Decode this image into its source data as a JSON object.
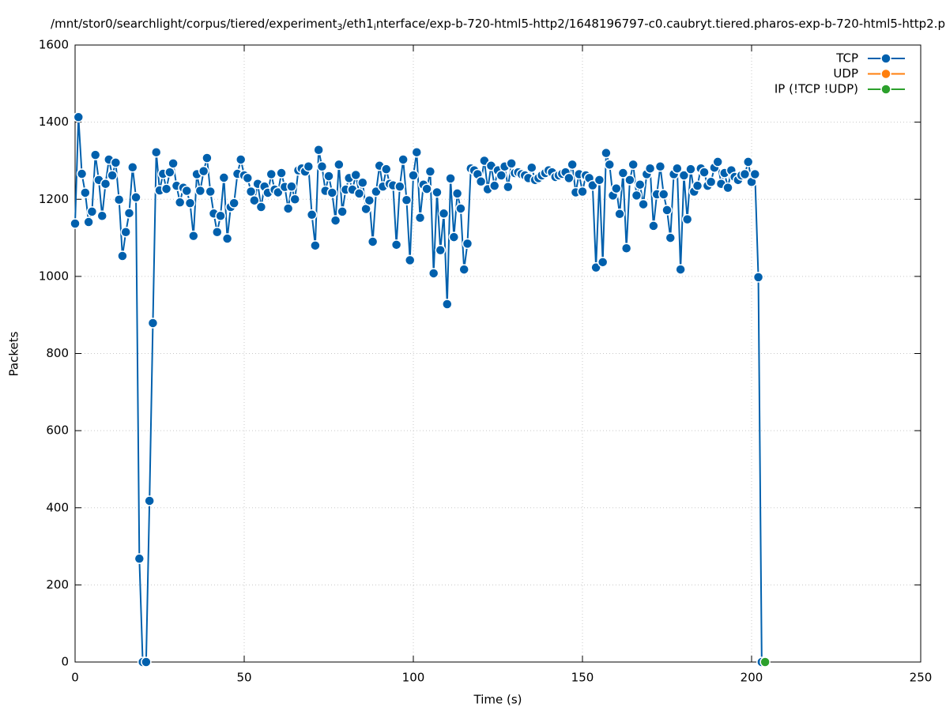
{
  "chart_data": {
    "type": "line",
    "title_parts": [
      "/mnt/stor0/searchlight/corpus/tiered/experiment",
      "3",
      "/eth1",
      "i",
      "nterface/exp-b-720-html5-http2/1648196797-c0.caubryt.tiered.pharos-exp-b-720-html5-http2.p"
    ],
    "x_label": "Time (s)",
    "y_label": "Packets",
    "xlim": [
      0,
      250
    ],
    "xticks": [
      0,
      50,
      100,
      150,
      200,
      250
    ],
    "ylim": [
      0,
      1600
    ],
    "yticks": [
      0,
      200,
      400,
      600,
      800,
      1000,
      1200,
      1400,
      1600
    ],
    "grid": true,
    "legend": "top-right",
    "series": [
      {
        "name": "TCP",
        "color": "#0060ad",
        "x": [
          0,
          1,
          2,
          3,
          4,
          5,
          6,
          7,
          8,
          9,
          10,
          11,
          12,
          13,
          14,
          15,
          16,
          17,
          18,
          19,
          20,
          21,
          22,
          23,
          24,
          25,
          26,
          27,
          28,
          29,
          30,
          31,
          32,
          33,
          34,
          35,
          36,
          37,
          38,
          39,
          40,
          41,
          42,
          43,
          44,
          45,
          46,
          47,
          48,
          49,
          50,
          51,
          52,
          53,
          54,
          55,
          56,
          57,
          58,
          59,
          60,
          61,
          62,
          63,
          64,
          65,
          66,
          67,
          68,
          69,
          70,
          71,
          72,
          73,
          74,
          75,
          76,
          77,
          78,
          79,
          80,
          81,
          82,
          83,
          84,
          85,
          86,
          87,
          88,
          89,
          90,
          91,
          92,
          93,
          94,
          95,
          96,
          97,
          98,
          99,
          100,
          101,
          102,
          103,
          104,
          105,
          106,
          107,
          108,
          109,
          110,
          111,
          112,
          113,
          114,
          115,
          116,
          117,
          118,
          119,
          120,
          121,
          122,
          123,
          124,
          125,
          126,
          127,
          128,
          129,
          130,
          131,
          132,
          133,
          134,
          135,
          136,
          137,
          138,
          139,
          140,
          141,
          142,
          143,
          144,
          145,
          146,
          147,
          148,
          149,
          150,
          151,
          152,
          153,
          154,
          155,
          156,
          157,
          158,
          159,
          160,
          161,
          162,
          163,
          164,
          165,
          166,
          167,
          168,
          169,
          170,
          171,
          172,
          173,
          174,
          175,
          176,
          177,
          178,
          179,
          180,
          181,
          182,
          183,
          184,
          185,
          186,
          187,
          188,
          189,
          190,
          191,
          192,
          193,
          194,
          195,
          196,
          197,
          198,
          199,
          200,
          201,
          202,
          203
        ],
        "values": [
          1137,
          1413,
          1266,
          1217,
          1141,
          1168,
          1315,
          1250,
          1157,
          1240,
          1303,
          1262,
          1295,
          1199,
          1053,
          1115,
          1164,
          1283,
          1205,
          268,
          0,
          0,
          418,
          879,
          1322,
          1223,
          1266,
          1227,
          1270,
          1293,
          1235,
          1192,
          1230,
          1222,
          1190,
          1105,
          1265,
          1222,
          1273,
          1307,
          1220,
          1163,
          1115,
          1157,
          1256,
          1098,
          1180,
          1190,
          1266,
          1303,
          1262,
          1255,
          1220,
          1197,
          1240,
          1180,
          1233,
          1217,
          1265,
          1225,
          1218,
          1268,
          1232,
          1176,
          1233,
          1200,
          1275,
          1280,
          1272,
          1285,
          1160,
          1080,
          1328,
          1285,
          1222,
          1260,
          1217,
          1145,
          1290,
          1168,
          1225,
          1255,
          1225,
          1263,
          1215,
          1243,
          1175,
          1197,
          1090,
          1220,
          1287,
          1233,
          1278,
          1240,
          1236,
          1082,
          1233,
          1303,
          1198,
          1042,
          1262,
          1322,
          1152,
          1238,
          1227,
          1272,
          1008,
          1218,
          1068,
          1163,
          928,
          1254,
          1102,
          1215,
          1176,
          1018,
          1085,
          1280,
          1275,
          1265,
          1246,
          1300,
          1226,
          1287,
          1235,
          1275,
          1262,
          1285,
          1232,
          1293,
          1268,
          1270,
          1265,
          1262,
          1255,
          1282,
          1250,
          1255,
          1262,
          1268,
          1275,
          1270,
          1258,
          1262,
          1266,
          1270,
          1255,
          1290,
          1218,
          1265,
          1220,
          1262,
          1255,
          1236,
          1023,
          1250,
          1037,
          1320,
          1290,
          1210,
          1228,
          1162,
          1268,
          1073,
          1250,
          1290,
          1210,
          1238,
          1187,
          1265,
          1280,
          1131,
          1213,
          1285,
          1213,
          1172,
          1100,
          1265,
          1280,
          1018,
          1262,
          1148,
          1278,
          1220,
          1235,
          1280,
          1270,
          1235,
          1245,
          1282,
          1297,
          1240,
          1268,
          1230,
          1275,
          1258,
          1250,
          1262,
          1265,
          1297,
          1245,
          1265,
          998,
          0
        ]
      },
      {
        "name": "UDP",
        "color": "#ff7f0e",
        "x": [],
        "values": []
      },
      {
        "name": "IP (!TCP  !UDP)",
        "color": "#2ca02c",
        "x": [
          204
        ],
        "values": [
          0
        ]
      }
    ]
  }
}
